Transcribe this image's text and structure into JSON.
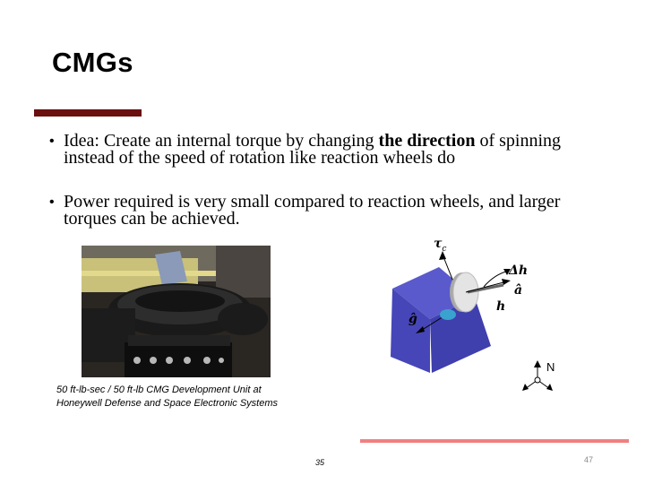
{
  "slide": {
    "title": "CMGs",
    "bullets": [
      {
        "pre": "Idea: Create an internal torque by changing ",
        "bold": "the direction",
        "post": " of spinning instead of the speed of rotation like reaction wheels do"
      },
      {
        "text": "Power required is very small compared to reaction wheels, and larger torques can be achieved."
      }
    ],
    "caption_line1": "50 ft-lb-sec / 50 ft-lb CMG Development Unit at",
    "caption_line2": "Honeywell Defense and Space Electronic Systems",
    "diagram": {
      "tau_label": "τ",
      "tau_subscript": "c",
      "delta_h_label": "Δh",
      "a_label": "â",
      "h_label": "h",
      "g_label": "ĝ",
      "north_label": "N"
    },
    "inner_page_number": "35",
    "page_number": "47"
  },
  "colors": {
    "accent_bar": "#6b0f0f",
    "footer_line": "#f08080",
    "cube_front": "#4646b8",
    "cube_side": "#3434a0",
    "cube_top": "#5a5acc"
  }
}
